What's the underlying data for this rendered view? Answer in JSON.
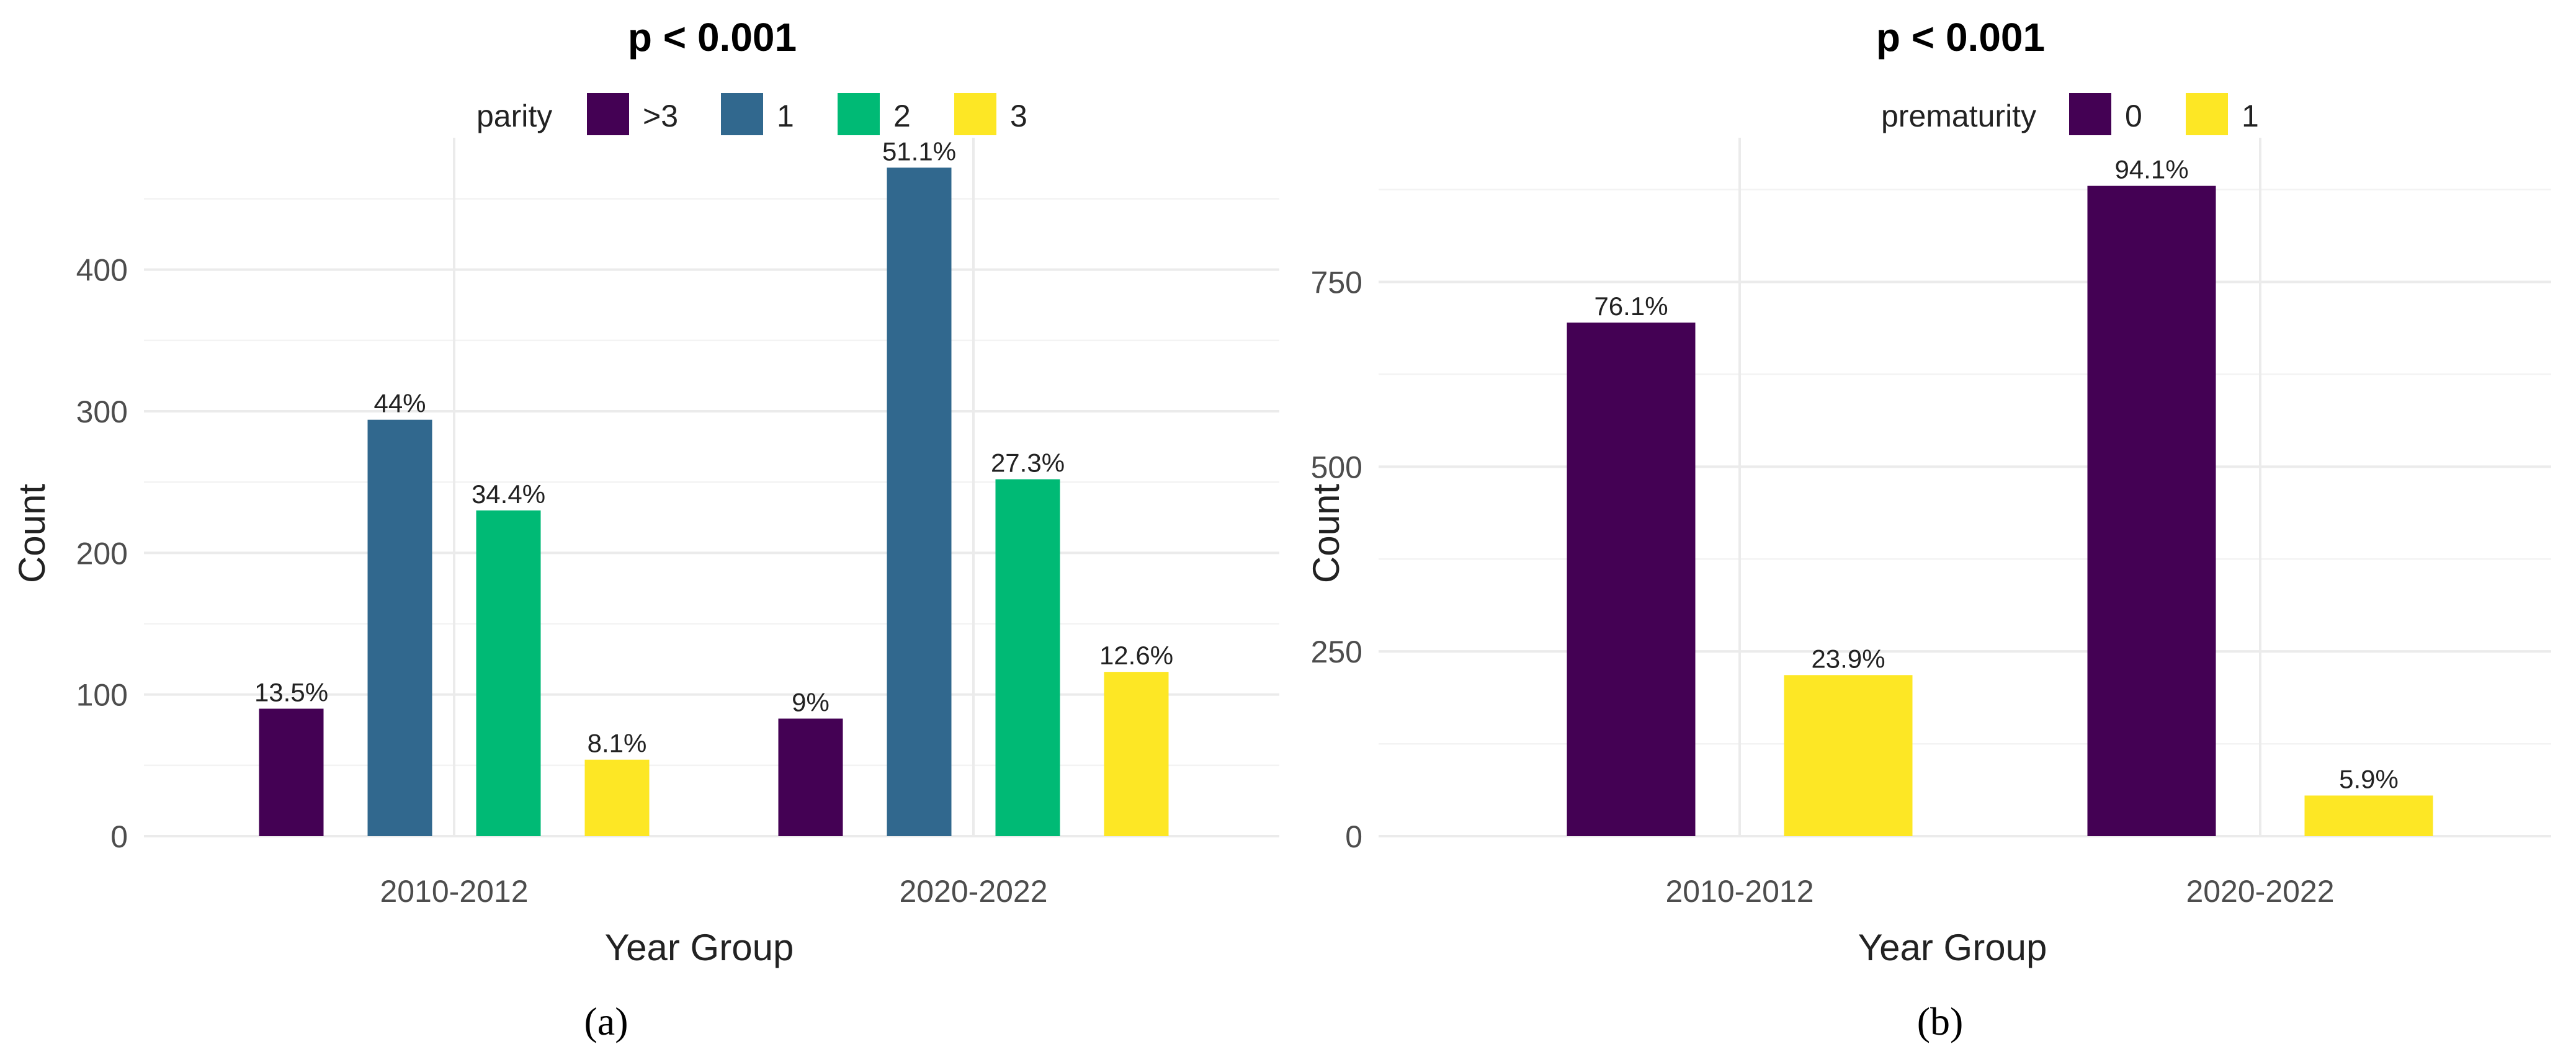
{
  "chart_data": [
    {
      "type": "bar",
      "panel_caption": "(a)",
      "title": "p < 0.001",
      "xlabel": "Year Group",
      "ylabel": "Count",
      "legend_title": "parity",
      "legend_position": "top",
      "categories": [
        "2010-2012",
        "2020-2022"
      ],
      "ylim": [
        0,
        480
      ],
      "yticks": [
        0,
        100,
        200,
        300,
        400
      ],
      "grid": true,
      "series": [
        {
          "name": ">3",
          "color": "#440154",
          "values": [
            90,
            83
          ],
          "labels": [
            "13.5%",
            "9%"
          ]
        },
        {
          "name": "1",
          "color": "#31688e",
          "values": [
            294,
            472
          ],
          "labels": [
            "44%",
            "51.1%"
          ]
        },
        {
          "name": "2",
          "color": "#00ba75",
          "values": [
            230,
            252
          ],
          "labels": [
            "34.4%",
            "27.3%"
          ]
        },
        {
          "name": "3",
          "color": "#fde725",
          "values": [
            54,
            116
          ],
          "labels": [
            "8.1%",
            "12.6%"
          ]
        }
      ]
    },
    {
      "type": "bar",
      "panel_caption": "(b)",
      "title": "p < 0.001",
      "xlabel": "Year Group",
      "ylabel": "Count",
      "legend_title": "prematurity",
      "legend_position": "top",
      "categories": [
        "2010-2012",
        "2020-2022"
      ],
      "ylim": [
        0,
        920
      ],
      "yticks": [
        0,
        250,
        500,
        750
      ],
      "grid": true,
      "series": [
        {
          "name": "0",
          "color": "#440154",
          "values": [
            695,
            880
          ],
          "labels": [
            "76.1%",
            "94.1%"
          ]
        },
        {
          "name": "1",
          "color": "#fde725",
          "values": [
            218,
            55
          ],
          "labels": [
            "23.9%",
            "5.9%"
          ]
        }
      ]
    }
  ]
}
